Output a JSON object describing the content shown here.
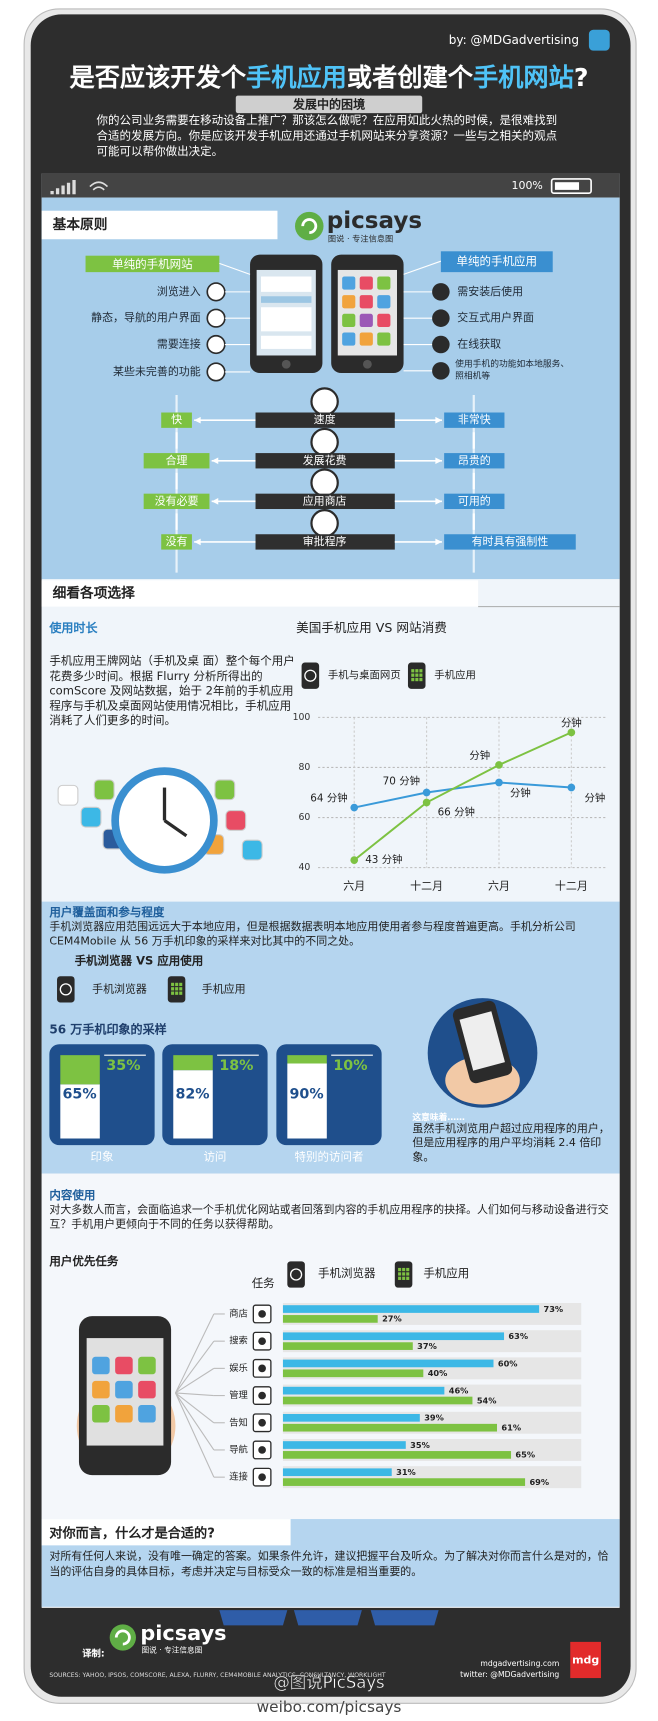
{
  "header": {
    "byline": "by: @MDGadvertising",
    "title_parts": [
      "是否应该开发个",
      "手机应用",
      "或者创建个",
      "手机网站",
      "?"
    ],
    "subtitle": "发展中的困境",
    "intro": "你的公司业务需要在移动设备上推广？那该怎么做呢？在应用如此火热的时候，是很难找到合适的发展方向。你是应该开发手机应用还通过手机网站来分享资源？一些与之相关的观点可能可以帮你做出决定。"
  },
  "status": {
    "battery": "100%"
  },
  "basics": {
    "heading": "基本原则",
    "logo": {
      "name": "picsays",
      "tagline": "图说 · 专注信息图"
    },
    "web": {
      "title": "单纯的手机网站",
      "items": [
        "浏览进入",
        "静态，导航的用户界面",
        "需要连接",
        "某些未完善的功能"
      ]
    },
    "app": {
      "title": "单纯的手机应用",
      "items": [
        "需安装后使用",
        "交互式用户界面",
        "在线获取",
        "使用手机的功能如本地服务、照相机等"
      ]
    },
    "comparisons": [
      {
        "web": "快",
        "aspect": "速度",
        "app": "非常快"
      },
      {
        "web": "合理",
        "aspect": "发展花费",
        "app": "昂贵的"
      },
      {
        "web": "没有必要",
        "aspect": "应用商店",
        "app": "可用的"
      },
      {
        "web": "没有",
        "aspect": "审批程序",
        "app": "有时具有强制性"
      }
    ]
  },
  "details": {
    "heading": "细看各项选择",
    "usage": {
      "heading": "使用时长",
      "text": "手机应用王牌网站（手机及桌 面）整个每个用户花费多少时间。根据 Flurry 分析所得出的 comScore 及网站数据，始于 2年前的手机应用程序与手机及桌面网站使用情况相比，手机应用消耗了人们更多的时间。"
    },
    "reach": {
      "heading": "用户覆盖面和参与程度",
      "text": "手机浏览器应用范围远远大于本地应用，但是根据数据表明本地应用使用者参与程度普遍更高。手机分析公司 CEM4Mobile 从 56 万手机印象的采样来对比其中的不同之处。",
      "note_heading": "这意味着……",
      "note": "虽然手机浏览用户超过应用程序的用户，但是应用程序的用户平均消耗 2.4 倍印象。"
    },
    "content": {
      "heading": "内容使用",
      "text": "对大多数人而言，会面临追求一个手机优化网站或者回落到内容的手机应用程序的抉择。人们如何与移动设备进行交互？手机用户更倾向于不同的任务以获得帮助。"
    }
  },
  "conclusion": {
    "heading": "对你而言，什么才是合适的?",
    "text": "对所有任何人来说，没有唯一确定的答案。如果条件允许，建议把握平台及听众。为了解决对你而言什么是对的，恰当的评估自身的具体目标，考虑并决定与目标受众一致的标准是相当重要的。"
  },
  "footer": {
    "translated_by": "译制:",
    "sources": "SOURCES: YAHOO, IPSOS, COMSCORE, ALEXA, FLURRY, CEM4MOBILE ANALYTICS, CONSULTANCY, WORKLIGHT",
    "site": "mdgadvertising.com",
    "twitter": "twitter: @MDGadvertising",
    "brand": "mdg",
    "watermark": "@图说PicSays",
    "weibo": "weibo.com/picsays"
  },
  "chart_data": [
    {
      "type": "line",
      "title": "美国手机应用 VS 网站消费",
      "categories": [
        "六月",
        "十二月",
        "六月",
        "十二月"
      ],
      "series": [
        {
          "name": "手机与桌面网页",
          "color": "#3a9ad9",
          "values": [
            64,
            70,
            74,
            72
          ],
          "value_labels": [
            "64 分钟",
            "70 分钟",
            "分钟",
            "分钟"
          ]
        },
        {
          "name": "手机应用",
          "color": "#7dc242",
          "values": [
            43,
            66,
            81,
            94
          ],
          "value_labels": [
            "43 分钟",
            "66 分钟",
            "分钟",
            "分钟"
          ]
        }
      ],
      "ylim": [
        40,
        100
      ],
      "yticks": [
        40,
        60,
        80,
        100
      ],
      "grid": true
    },
    {
      "type": "stacked-bar",
      "title": "56 万手机印象的采样",
      "subtitle": "手机浏览器 VS 应用使用",
      "categories": [
        "印象",
        "访问",
        "特别的访问者"
      ],
      "series": [
        {
          "name": "手机浏览器",
          "color": "#ffffff",
          "values": [
            65,
            82,
            90
          ],
          "value_labels": [
            "65%",
            "82%",
            "90%"
          ]
        },
        {
          "name": "手机应用",
          "color": "#7dc242",
          "values": [
            35,
            18,
            10
          ],
          "value_labels": [
            "35%",
            "18%",
            "10%"
          ]
        }
      ],
      "ylim": [
        0,
        100
      ]
    },
    {
      "type": "hbar",
      "title": "用户优先任务",
      "axis_label": "任务",
      "categories": [
        "商店",
        "搜索",
        "娱乐",
        "管理",
        "告知",
        "导航",
        "连接"
      ],
      "series": [
        {
          "name": "手机浏览器",
          "color": "#3cb8e6",
          "values": [
            73,
            63,
            60,
            46,
            39,
            35,
            31
          ],
          "value_labels": [
            "73%",
            "63%",
            "60%",
            "46%",
            "39%",
            "35%",
            "31%"
          ]
        },
        {
          "name": "手机应用",
          "color": "#7dc242",
          "values": [
            27,
            37,
            40,
            54,
            61,
            65,
            69
          ],
          "value_labels": [
            "27%",
            "37%",
            "40%",
            "54%",
            "61%",
            "65%",
            "69%"
          ]
        }
      ],
      "xlim": [
        0,
        100
      ]
    }
  ]
}
